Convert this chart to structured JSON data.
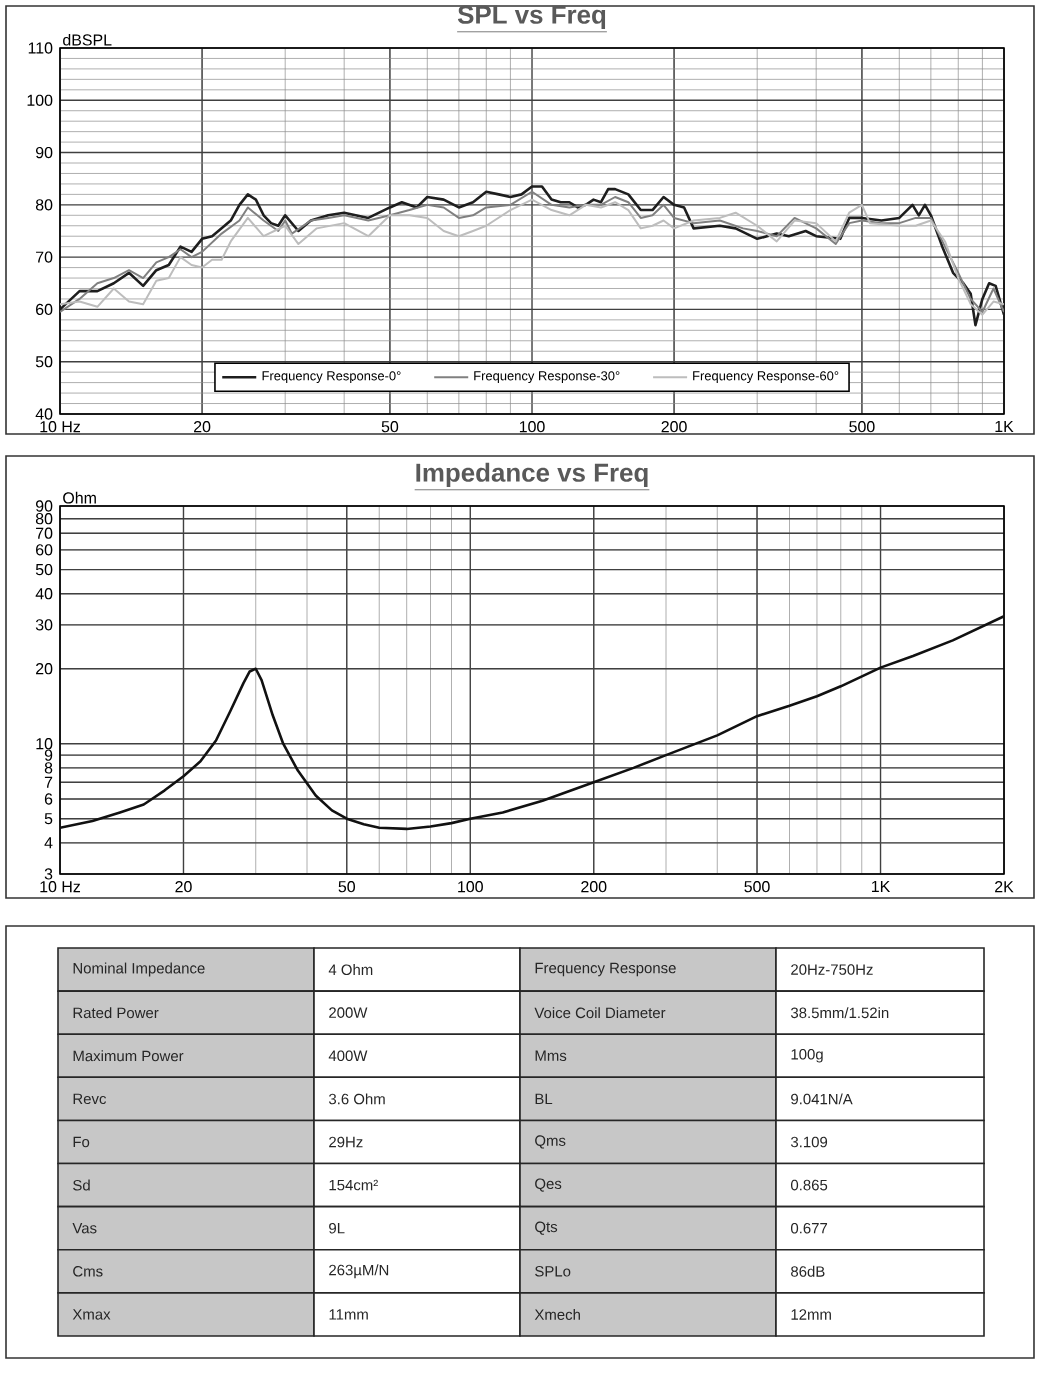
{
  "chart_data": [
    {
      "type": "line",
      "title": "SPL vs Freq",
      "ylabel": "dBSPL",
      "log": "x",
      "grid": true,
      "legend": "bottom",
      "marker": "none",
      "line_style": "solid",
      "xlim": [
        10,
        1000
      ],
      "ylim": [
        40,
        110
      ],
      "xticks": [
        {
          "value": 10,
          "label": "10 Hz"
        },
        20,
        50,
        100,
        200,
        500,
        {
          "value": 1000,
          "label": "1K"
        }
      ],
      "yticks": [
        40,
        50,
        60,
        70,
        80,
        90,
        100,
        110
      ],
      "series": [
        {
          "name": "Frequency Response-0°",
          "color": "#1e1e1e",
          "x": [
            10,
            11,
            12,
            13,
            14,
            15,
            16,
            17,
            18,
            19,
            20,
            21,
            22,
            23,
            24,
            25,
            26,
            27,
            28,
            29,
            30,
            32,
            34,
            37,
            40,
            45,
            50,
            53,
            57,
            60,
            65,
            70,
            75,
            80,
            85,
            90,
            95,
            100,
            105,
            110,
            115,
            120,
            125,
            130,
            135,
            140,
            145,
            150,
            160,
            170,
            180,
            190,
            200,
            210,
            220,
            250,
            270,
            300,
            330,
            350,
            380,
            400,
            450,
            470,
            500,
            550,
            600,
            640,
            660,
            680,
            700,
            740,
            780,
            820,
            850,
            870,
            900,
            930,
            960,
            1000
          ],
          "values": [
            60,
            63.5,
            63.5,
            65,
            67,
            64.5,
            67.5,
            68.5,
            72,
            71,
            73.5,
            74,
            75.5,
            77,
            80,
            82,
            81,
            78,
            76.5,
            76,
            78,
            75,
            77,
            78,
            78.5,
            77.5,
            79.5,
            80.5,
            79.5,
            81.5,
            81,
            79.5,
            80.5,
            82.5,
            82,
            81.5,
            82,
            83.5,
            83.5,
            81,
            80.5,
            80.5,
            79.5,
            80,
            81,
            80.5,
            83,
            83,
            82,
            79,
            79,
            81.5,
            80,
            79.5,
            75.5,
            76,
            75.5,
            73.5,
            74.5,
            74,
            75,
            74,
            73.5,
            77.5,
            77.5,
            77,
            77.5,
            80,
            78,
            80,
            78,
            72,
            67,
            65,
            63,
            57,
            62,
            65,
            64.5,
            59
          ]
        },
        {
          "name": "Frequency Response-30°",
          "color": "#808080",
          "x": [
            10,
            11,
            12,
            13,
            14,
            15,
            16,
            17,
            18,
            19,
            20,
            22,
            24,
            25,
            27,
            29,
            30,
            31,
            34,
            37,
            40,
            45,
            50,
            55,
            60,
            65,
            70,
            75,
            80,
            90,
            100,
            110,
            120,
            130,
            140,
            150,
            160,
            170,
            180,
            190,
            200,
            220,
            250,
            280,
            300,
            330,
            360,
            400,
            440,
            470,
            500,
            550,
            600,
            650,
            700,
            750,
            800,
            850,
            900,
            950,
            1000
          ],
          "values": [
            59.5,
            62,
            65,
            66,
            67.5,
            66,
            69,
            70,
            71.5,
            70,
            71,
            74.5,
            77,
            79.5,
            77,
            75,
            77,
            74.5,
            77,
            77.5,
            78,
            77,
            78,
            79,
            80,
            79.5,
            77.5,
            78,
            79.5,
            80,
            82.5,
            80,
            79.5,
            80,
            80,
            81.5,
            80.5,
            77.5,
            78,
            80,
            77.5,
            76.5,
            77,
            75.5,
            75,
            74,
            77.5,
            75.5,
            72.5,
            76.5,
            77,
            76.5,
            76.5,
            77.5,
            77.5,
            72,
            67,
            62,
            59.5,
            64,
            59.5
          ]
        },
        {
          "name": "Frequency Response-60°",
          "color": "#bdbdbd",
          "x": [
            10,
            11,
            12,
            13,
            14,
            15,
            16,
            17,
            18,
            19,
            20,
            21,
            22,
            23,
            25,
            27,
            30,
            32,
            35,
            40,
            45,
            50,
            55,
            60,
            65,
            70,
            75,
            80,
            90,
            100,
            110,
            120,
            130,
            140,
            150,
            160,
            170,
            180,
            190,
            200,
            220,
            250,
            270,
            300,
            330,
            360,
            400,
            440,
            470,
            500,
            520,
            600,
            650,
            700,
            750,
            800,
            850,
            900,
            950,
            1000
          ],
          "values": [
            61,
            61.5,
            60.5,
            64,
            61.5,
            61,
            65.5,
            66,
            70,
            68.5,
            68,
            69.5,
            69.5,
            73,
            77.5,
            74,
            76,
            72.5,
            75.5,
            76.5,
            74,
            78,
            78,
            77.5,
            75,
            74,
            75,
            76,
            79,
            81,
            79,
            78,
            80,
            79.5,
            80.5,
            79,
            75.5,
            76,
            77,
            75.5,
            77,
            77.5,
            78.5,
            76,
            73,
            77,
            76.5,
            73,
            78.5,
            80,
            76.5,
            76,
            76,
            77,
            73,
            66,
            61,
            59,
            61.5,
            61
          ]
        }
      ]
    },
    {
      "type": "line",
      "title": "Impedance vs Freq",
      "ylabel": "Ohm",
      "log": "xy",
      "grid": true,
      "marker": "none",
      "line_style": "solid",
      "xlim": [
        10,
        2000
      ],
      "ylim": [
        3,
        90
      ],
      "xticks": [
        {
          "value": 10,
          "label": "10 Hz"
        },
        20,
        50,
        100,
        200,
        500,
        {
          "value": 1000,
          "label": "1K"
        },
        {
          "value": 2000,
          "label": "2K"
        }
      ],
      "yticks": [
        3,
        4,
        5,
        6,
        7,
        8,
        9,
        10,
        20,
        30,
        40,
        50,
        60,
        70,
        80,
        90
      ],
      "series": [
        {
          "color": "#111111",
          "x": [
            10,
            12,
            14,
            16,
            18,
            20,
            22,
            24,
            26,
            28,
            29,
            30,
            31,
            33,
            35,
            38,
            42,
            46,
            50,
            55,
            60,
            70,
            80,
            90,
            100,
            120,
            150,
            200,
            250,
            300,
            400,
            500,
            600,
            700,
            800,
            1000,
            1200,
            1500,
            2000
          ],
          "values": [
            4.6,
            4.9,
            5.3,
            5.7,
            6.5,
            7.4,
            8.5,
            10.3,
            13.5,
            17.5,
            19.5,
            20,
            18,
            13,
            10,
            7.8,
            6.2,
            5.4,
            5,
            4.75,
            4.6,
            4.55,
            4.65,
            4.8,
            5,
            5.3,
            5.9,
            7,
            8,
            9,
            10.8,
            12.9,
            14.2,
            15.5,
            17,
            20.2,
            22.5,
            26,
            32.5
          ]
        }
      ]
    },
    {
      "type": "other",
      "annotations": [
        "Nominal Impedance",
        "4 Ohm",
        "Frequency Response",
        "20Hz-750Hz",
        "Rated Power",
        "200W",
        "Voice Coil Diameter",
        "38.5mm/1.52in",
        "Maximum Power",
        "400W",
        "Mms",
        "100g",
        "Revc",
        "3.6 Ohm",
        "BL",
        "9.041N/A",
        "Fo",
        "29Hz",
        "Qms",
        "3.109",
        "Sd",
        "154cm²",
        "Qes",
        "0.865",
        "Vas",
        "9L",
        "Qts",
        "0.677",
        "Cms",
        "263µM/N",
        "SPLo",
        "86dB",
        "Xmax",
        "11mm",
        "Xmech",
        "12mm"
      ]
    }
  ]
}
